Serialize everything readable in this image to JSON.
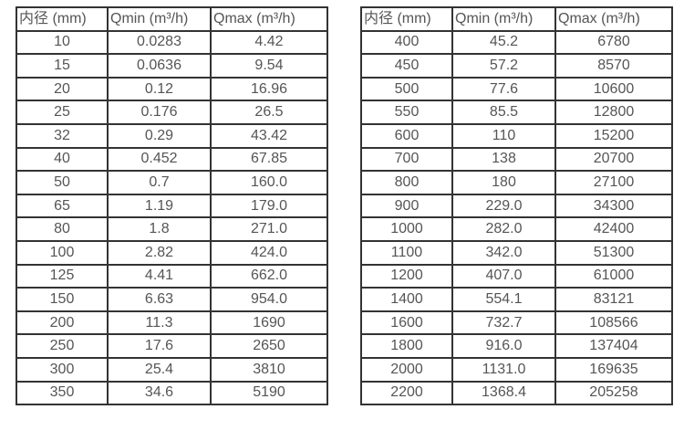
{
  "page": {
    "background_color": "#ffffff",
    "border_color": "#333333",
    "text_color": "#555557"
  },
  "tables": [
    {
      "headers": [
        "内径 (mm)",
        "Qmin (m³/h)",
        "Qmax (m³/h)"
      ],
      "rows": [
        [
          "10",
          "0.0283",
          "4.42"
        ],
        [
          "15",
          "0.0636",
          "9.54"
        ],
        [
          "20",
          "0.12",
          "16.96"
        ],
        [
          "25",
          "0.176",
          "26.5"
        ],
        [
          "32",
          "0.29",
          "43.42"
        ],
        [
          "40",
          "0.452",
          "67.85"
        ],
        [
          "50",
          "0.7",
          "160.0"
        ],
        [
          "65",
          "1.19",
          "179.0"
        ],
        [
          "80",
          "1.8",
          "271.0"
        ],
        [
          "100",
          "2.82",
          "424.0"
        ],
        [
          "125",
          "4.41",
          "662.0"
        ],
        [
          "150",
          "6.63",
          "954.0"
        ],
        [
          "200",
          "11.3",
          "1690"
        ],
        [
          "250",
          "17.6",
          "2650"
        ],
        [
          "300",
          "25.4",
          "3810"
        ],
        [
          "350",
          "34.6",
          "5190"
        ]
      ]
    },
    {
      "headers": [
        "内径 (mm)",
        "Qmin (m³/h)",
        "Qmax (m³/h)"
      ],
      "rows": [
        [
          "400",
          "45.2",
          "6780"
        ],
        [
          "450",
          "57.2",
          "8570"
        ],
        [
          "500",
          "77.6",
          "10600"
        ],
        [
          "550",
          "85.5",
          "12800"
        ],
        [
          "600",
          "110",
          "15200"
        ],
        [
          "700",
          "138",
          "20700"
        ],
        [
          "800",
          "180",
          "27100"
        ],
        [
          "900",
          "229.0",
          "34300"
        ],
        [
          "1000",
          "282.0",
          "42400"
        ],
        [
          "1100",
          "342.0",
          "51300"
        ],
        [
          "1200",
          "407.0",
          "61000"
        ],
        [
          "1400",
          "554.1",
          "83121"
        ],
        [
          "1600",
          "732.7",
          "108566"
        ],
        [
          "1800",
          "916.0",
          "137404"
        ],
        [
          "2000",
          "1131.0",
          "169635"
        ],
        [
          "2200",
          "1368.4",
          "205258"
        ]
      ]
    }
  ]
}
